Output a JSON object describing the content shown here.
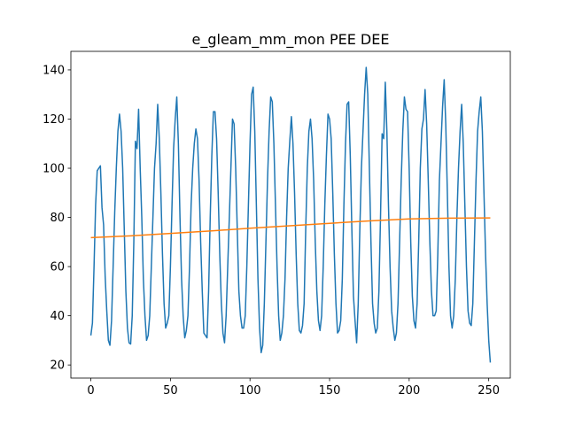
{
  "chart_data": {
    "type": "line",
    "title": "e_gleam_mm_mon PEE DEE",
    "xlim": [
      -12.55,
      263.55
    ],
    "xticks": [
      0,
      50,
      100,
      150,
      200,
      250
    ],
    "ylim": [
      14.66,
      147.54
    ],
    "yticks": [
      20,
      40,
      60,
      80,
      100,
      120,
      140
    ],
    "series": [
      {
        "color": "#1f77b4",
        "x": [
          0,
          1,
          2,
          3,
          4,
          5,
          6,
          7,
          8,
          9,
          10,
          11,
          12,
          13,
          14,
          15,
          16,
          17,
          18,
          19,
          20,
          21,
          22,
          23,
          24,
          25,
          26,
          27,
          28,
          29,
          30,
          31,
          32,
          33,
          34,
          35,
          36,
          37,
          38,
          39,
          40,
          41,
          42,
          43,
          44,
          45,
          46,
          47,
          48,
          49,
          50,
          51,
          52,
          53,
          54,
          55,
          56,
          57,
          58,
          59,
          60,
          61,
          62,
          63,
          64,
          65,
          66,
          67,
          68,
          69,
          70,
          71,
          72,
          73,
          74,
          75,
          76,
          77,
          78,
          79,
          80,
          81,
          82,
          83,
          84,
          85,
          86,
          87,
          88,
          89,
          90,
          91,
          92,
          93,
          94,
          95,
          96,
          97,
          98,
          99,
          100,
          101,
          102,
          103,
          104,
          105,
          106,
          107,
          108,
          109,
          110,
          111,
          112,
          113,
          114,
          115,
          116,
          117,
          118,
          119,
          120,
          121,
          122,
          123,
          124,
          125,
          126,
          127,
          128,
          129,
          130,
          131,
          132,
          133,
          134,
          135,
          136,
          137,
          138,
          139,
          140,
          141,
          142,
          143,
          144,
          145,
          146,
          147,
          148,
          149,
          150,
          151,
          152,
          153,
          154,
          155,
          156,
          157,
          158,
          159,
          160,
          161,
          162,
          163,
          164,
          165,
          166,
          167,
          168,
          169,
          170,
          171,
          172,
          173,
          174,
          175,
          176,
          177,
          178,
          179,
          180,
          181,
          182,
          183,
          184,
          185,
          186,
          187,
          188,
          189,
          190,
          191,
          192,
          193,
          194,
          195,
          196,
          197,
          198,
          199,
          200,
          201,
          202,
          203,
          204,
          205,
          206,
          207,
          208,
          209,
          210,
          211,
          212,
          213,
          214,
          215,
          216,
          217,
          218,
          219,
          220,
          221,
          222,
          223,
          224,
          225,
          226,
          227,
          228,
          229,
          230,
          231,
          232,
          233,
          234,
          235,
          236,
          237,
          238,
          239,
          240,
          241,
          242,
          243,
          244,
          245,
          246,
          247,
          248,
          249,
          250,
          251
        ],
        "values": [
          32,
          37,
          60,
          85,
          99,
          100,
          101,
          84,
          77,
          56,
          42,
          30,
          28,
          38,
          60,
          82,
          100,
          115,
          122,
          115,
          100,
          75,
          50,
          35,
          29,
          28.5,
          40,
          70,
          111,
          108,
          124,
          100,
          80,
          55,
          40,
          30,
          32,
          40,
          60,
          80,
          100,
          110,
          126,
          112,
          90,
          65,
          45,
          35,
          37,
          40,
          60,
          85,
          108,
          120,
          129,
          110,
          80,
          55,
          40,
          31,
          34,
          40,
          60,
          85,
          100,
          110,
          116,
          112,
          95,
          70,
          50,
          33,
          32,
          31,
          50,
          80,
          105,
          123,
          123,
          112,
          90,
          65,
          45,
          33,
          29,
          40,
          60,
          80,
          100,
          120,
          118,
          100,
          75,
          50,
          40,
          35,
          35,
          40,
          60,
          85,
          110,
          130,
          133,
          115,
          85,
          55,
          35,
          25,
          28,
          45,
          70,
          95,
          115,
          129,
          127,
          110,
          85,
          60,
          40,
          30,
          33,
          40,
          55,
          80,
          100,
          111,
          121,
          110,
          90,
          65,
          45,
          34,
          33,
          36,
          45,
          75,
          100,
          115,
          120,
          112,
          95,
          70,
          50,
          38,
          34,
          40,
          60,
          85,
          105,
          122,
          120,
          112,
          90,
          65,
          45,
          33,
          34,
          38,
          55,
          85,
          110,
          126,
          127,
          105,
          75,
          48,
          38,
          29,
          45,
          75,
          100,
          115,
          130,
          141,
          130,
          100,
          70,
          45,
          37,
          33,
          35,
          50,
          80,
          114,
          112,
          135,
          115,
          85,
          60,
          42,
          35,
          30,
          33,
          45,
          70,
          95,
          115,
          129,
          124,
          123,
          100,
          70,
          48,
          38,
          35,
          45,
          70,
          100,
          116,
          120,
          132,
          118,
          95,
          70,
          50,
          40,
          40,
          42,
          65,
          95,
          110,
          125,
          136,
          118,
          90,
          60,
          40,
          35,
          40,
          55,
          80,
          100,
          115,
          126,
          110,
          85,
          60,
          42,
          37,
          36,
          45,
          70,
          95,
          115,
          123,
          129,
          115,
          90,
          65,
          45,
          30,
          21
        ]
      },
      {
        "color": "#ff7f0e",
        "x": [
          0,
          25,
          50,
          75,
          100,
          125,
          150,
          175,
          200,
          225,
          251
        ],
        "values": [
          71.8,
          72.5,
          73.5,
          74.5,
          75.6,
          76.6,
          77.6,
          78.6,
          79.4,
          79.7,
          79.8
        ]
      }
    ]
  }
}
